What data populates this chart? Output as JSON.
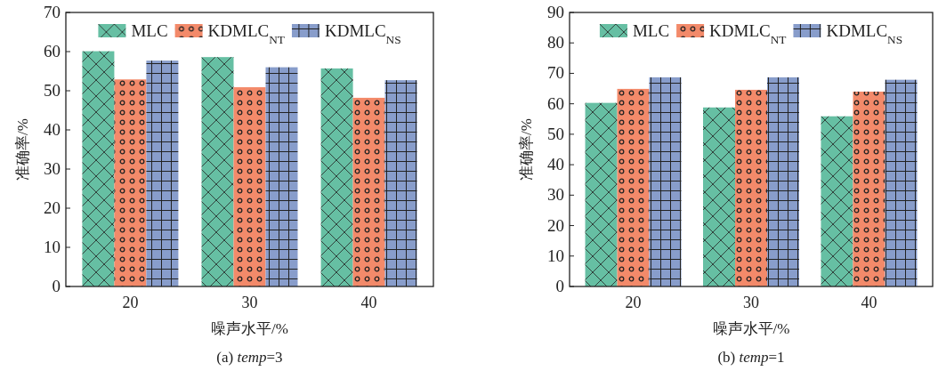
{
  "chart_data": [
    {
      "type": "bar",
      "title": "(a)  *temp*=3",
      "xlabel": "噪声水平/%",
      "ylabel": "准确率/%",
      "categories": [
        "20",
        "30",
        "40"
      ],
      "ylim": [
        0,
        70
      ],
      "yticks": [
        0,
        10,
        20,
        30,
        40,
        50,
        60,
        70
      ],
      "legend": "top",
      "series": [
        {
          "name": "MLC",
          "color": "#66bfa3",
          "values": [
            60.1,
            58.6,
            55.7
          ]
        },
        {
          "name": "KDMLC$_{NT}$",
          "color": "#f38a6a",
          "values": [
            52.9,
            50.9,
            48.2
          ]
        },
        {
          "name": "KDMLC$_{NS}$",
          "color": "#889dcb",
          "values": [
            57.7,
            56.0,
            52.7
          ]
        }
      ]
    },
    {
      "type": "bar",
      "title": "(b)  *temp*=1",
      "xlabel": "噪声水平/%",
      "ylabel": "准确率/%",
      "categories": [
        "20",
        "30",
        "40"
      ],
      "ylim": [
        0,
        90
      ],
      "yticks": [
        0,
        10,
        20,
        30,
        40,
        50,
        60,
        70,
        80,
        90
      ],
      "legend": "top",
      "series": [
        {
          "name": "MLC",
          "color": "#66bfa3",
          "values": [
            60.3,
            58.8,
            55.9
          ]
        },
        {
          "name": "KDMLC$_{NT}$",
          "color": "#f38a6a",
          "values": [
            64.9,
            64.6,
            64.0
          ]
        },
        {
          "name": "KDMLC$_{NS}$",
          "color": "#889dcb",
          "values": [
            68.7,
            68.7,
            67.9
          ]
        }
      ]
    }
  ]
}
